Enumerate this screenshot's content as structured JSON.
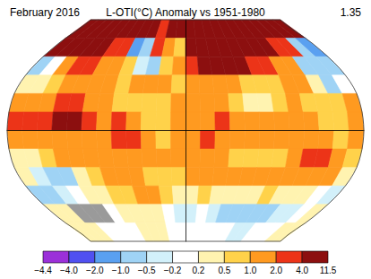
{
  "chart_data": {
    "type": "heatmap",
    "title": "February 2016",
    "subtitle": "L-OTI(°C) Anomaly vs 1951-1980",
    "mean_anomaly": 1.35,
    "xlim": [
      -180,
      180
    ],
    "ylim": [
      -90,
      90
    ],
    "tick_labels": false,
    "cells": [
      [
        5,
        5,
        5,
        5,
        5,
        5,
        5,
        5,
        4,
        3,
        5,
        5,
        5,
        5,
        5,
        5,
        5,
        5,
        5,
        5,
        5,
        5,
        5,
        5
      ],
      [
        4,
        5,
        5,
        5,
        4,
        3,
        2,
        -2,
        -1,
        2,
        1,
        0.7,
        5,
        6,
        6,
        6,
        6,
        6,
        5,
        4,
        3,
        2,
        -1,
        -2
      ],
      [
        -0.7,
        0,
        1.5,
        3,
        2,
        1.5,
        1,
        0.7,
        -0.3,
        -0.7,
        0.7,
        1.5,
        3,
        5,
        5,
        5,
        4,
        3,
        3,
        1.5,
        1,
        -0.7,
        -1,
        -0.7
      ],
      [
        0.3,
        0.3,
        0.7,
        1.5,
        1.5,
        1.5,
        1,
        0.7,
        1,
        1.5,
        1,
        0.7,
        1.5,
        1.5,
        1,
        1,
        0.7,
        0.7,
        0.7,
        1,
        1,
        0.3,
        -0.7,
        0
      ],
      [
        1.5,
        1.5,
        1.5,
        3,
        3,
        1.5,
        1.5,
        0.7,
        0.7,
        0.7,
        0.7,
        1,
        1.5,
        1.5,
        1,
        0.7,
        0.3,
        0.3,
        0.7,
        1,
        0.7,
        0.7,
        0.7,
        1
      ],
      [
        3,
        3,
        3,
        5,
        5,
        3,
        1.5,
        3,
        1.5,
        0.7,
        0.7,
        1,
        1.5,
        1.5,
        3,
        1,
        1,
        1,
        1,
        1,
        1,
        0.7,
        0.7,
        1
      ],
      [
        1.5,
        1.5,
        1.5,
        1,
        1,
        1.5,
        1.5,
        3,
        3,
        1,
        0.7,
        1,
        1.5,
        3,
        1.5,
        1,
        1,
        1,
        1,
        1,
        1.5,
        1,
        0.7,
        1
      ],
      [
        0.3,
        0.3,
        0.7,
        1,
        1,
        1,
        1.5,
        1.5,
        1,
        1,
        1,
        1,
        1.5,
        1.5,
        1,
        0.7,
        0.7,
        0.7,
        0.7,
        1,
        3,
        3,
        1,
        0.7
      ],
      [
        0.3,
        -0.3,
        -0.7,
        -0.7,
        0.3,
        0.7,
        1,
        1.5,
        1,
        0.7,
        0.7,
        0.7,
        1,
        1,
        1.5,
        1.5,
        1,
        1,
        1,
        1,
        1.5,
        1.5,
        1,
        0.3
      ],
      [
        -0.7,
        -0.7,
        -0.3,
        0,
        0.3,
        0.3,
        0.7,
        0.7,
        1,
        1,
        0.7,
        0.3,
        0.3,
        0.7,
        0.3,
        0.3,
        0.3,
        0.3,
        0.7,
        0.3,
        0.3,
        0.3,
        0,
        -0.3
      ],
      [
        0.3,
        0.3,
        null,
        null,
        null,
        0,
        0.3,
        0.3,
        0.3,
        0.3,
        0,
        -0.3,
        -0.3,
        0,
        -0.3,
        -0.7,
        -0.7,
        -0.7,
        -0.7,
        -0.7,
        -0.3,
        -0.3,
        0,
        0.3
      ],
      [
        0.3,
        0.3,
        0.3,
        0,
        0,
        0,
        0,
        0.3,
        0.3,
        0.3,
        0,
        0,
        0,
        0,
        0,
        0,
        0,
        -0.3,
        -0.3,
        0,
        0,
        0,
        0.3,
        0.3
      ]
    ],
    "colorbar": {
      "ticks": [
        {
          "value": -4.4,
          "label": "−4.4"
        },
        {
          "value": -4.0,
          "label": "−4.0"
        },
        {
          "value": -2.0,
          "label": "−2.0"
        },
        {
          "value": -1.0,
          "label": "−1.0"
        },
        {
          "value": -0.5,
          "label": "−0.5"
        },
        {
          "value": -0.2,
          "label": "−0.2"
        },
        0.2,
        0.5,
        {
          "value": 1.0,
          "label": "1.0"
        },
        {
          "value": 2.0,
          "label": "2.0"
        },
        {
          "value": 4.0,
          "label": "4.0"
        },
        11.5
      ],
      "colors": [
        "#9b30d9",
        "#5050f0",
        "#5aa0f0",
        "#9fd3f5",
        "#d2f0fa",
        "#ffffff",
        "#fff3b0",
        "#ffd24a",
        "#ff9a20",
        "#ec3418",
        "#8c0f0f"
      ]
    }
  }
}
